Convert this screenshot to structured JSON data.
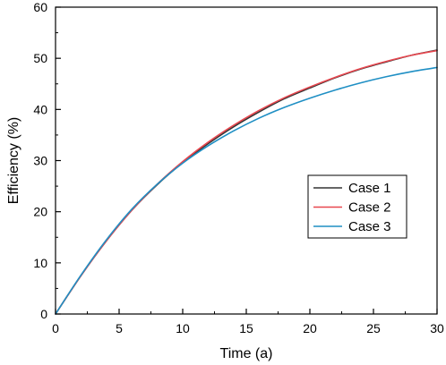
{
  "chart_data": {
    "type": "line",
    "title": "",
    "xlabel": "Time (a)",
    "ylabel": "Efficiency (%)",
    "xlim": [
      0,
      30
    ],
    "ylim": [
      0,
      60
    ],
    "xticks": [
      0,
      5,
      10,
      15,
      20,
      25,
      30
    ],
    "yticks": [
      0,
      10,
      20,
      30,
      40,
      50,
      60
    ],
    "grid": false,
    "legend_position": "right",
    "x": [
      0,
      2,
      4,
      6,
      8,
      10,
      12,
      14,
      16,
      18,
      20,
      22,
      24,
      26,
      28,
      30
    ],
    "series": [
      {
        "name": "Case 1",
        "color": "#333333",
        "values": [
          0,
          7.5,
          14.3,
          20.3,
          25.3,
          29.6,
          33.3,
          36.6,
          39.5,
          42.1,
          44.2,
          46.2,
          47.9,
          49.3,
          50.6,
          51.6
        ]
      },
      {
        "name": "Case 2",
        "color": "#e8474f",
        "values": [
          0,
          7.5,
          14.3,
          20.3,
          25.4,
          29.8,
          33.6,
          36.9,
          39.8,
          42.3,
          44.4,
          46.3,
          48.0,
          49.4,
          50.6,
          51.5
        ]
      },
      {
        "name": "Case 3",
        "color": "#1f8fc4",
        "values": [
          0,
          7.6,
          14.5,
          20.5,
          25.4,
          29.5,
          32.9,
          35.8,
          38.3,
          40.4,
          42.2,
          43.8,
          45.2,
          46.4,
          47.4,
          48.2
        ]
      }
    ]
  }
}
